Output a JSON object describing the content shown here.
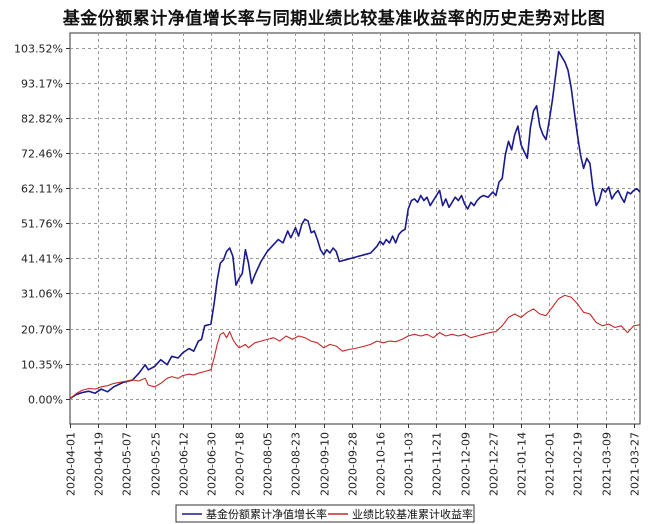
{
  "chart_data": {
    "type": "line",
    "title": "基金份额累计净值增长率与同期业绩比较基准收益率的历史走势对比图",
    "xlabel": "",
    "ylabel": "",
    "y_ticks": [
      "0.00%",
      "10.35%",
      "20.70%",
      "31.06%",
      "41.41%",
      "51.76%",
      "62.11%",
      "72.46%",
      "82.82%",
      "93.17%",
      "103.52%"
    ],
    "ylim": [
      -7.5,
      108
    ],
    "x_ticks": [
      "2020-04-01",
      "2020-04-19",
      "2020-05-07",
      "2020-05-25",
      "2020-06-12",
      "2020-06-30",
      "2020-07-18",
      "2020-08-05",
      "2020-08-23",
      "2020-09-10",
      "2020-09-28",
      "2020-10-16",
      "2020-11-03",
      "2020-11-21",
      "2020-12-09",
      "2020-12-27",
      "2021-01-14",
      "2021-02-01",
      "2021-02-19",
      "2021-03-09",
      "2021-03-27"
    ],
    "x_start": "2020-04-01",
    "x_end": "2021-03-31",
    "grid": true,
    "legend_position": "bottom",
    "series": [
      {
        "name": "基金份额累计净值增长率",
        "color": "#1a1a8c",
        "points": [
          [
            "2020-04-01",
            0.0
          ],
          [
            "2020-04-05",
            1.2
          ],
          [
            "2020-04-09",
            1.8
          ],
          [
            "2020-04-13",
            2.2
          ],
          [
            "2020-04-17",
            1.6
          ],
          [
            "2020-04-21",
            2.8
          ],
          [
            "2020-04-25",
            2.0
          ],
          [
            "2020-04-29",
            3.5
          ],
          [
            "2020-05-05",
            4.8
          ],
          [
            "2020-05-11",
            5.5
          ],
          [
            "2020-05-15",
            7.5
          ],
          [
            "2020-05-19",
            10.0
          ],
          [
            "2020-05-21",
            8.5
          ],
          [
            "2020-05-25",
            9.5
          ],
          [
            "2020-05-29",
            11.5
          ],
          [
            "2020-06-02",
            10.0
          ],
          [
            "2020-06-05",
            12.5
          ],
          [
            "2020-06-09",
            12.0
          ],
          [
            "2020-06-12",
            13.5
          ],
          [
            "2020-06-16",
            14.8
          ],
          [
            "2020-06-19",
            14.0
          ],
          [
            "2020-06-22",
            17.0
          ],
          [
            "2020-06-24",
            17.5
          ],
          [
            "2020-06-26",
            21.5
          ],
          [
            "2020-06-30",
            22.0
          ],
          [
            "2020-07-02",
            28.0
          ],
          [
            "2020-07-04",
            35.0
          ],
          [
            "2020-07-06",
            40.0
          ],
          [
            "2020-07-08",
            41.0
          ],
          [
            "2020-07-10",
            43.5
          ],
          [
            "2020-07-12",
            44.5
          ],
          [
            "2020-07-14",
            42.0
          ],
          [
            "2020-07-16",
            33.5
          ],
          [
            "2020-07-18",
            35.5
          ],
          [
            "2020-07-20",
            37.0
          ],
          [
            "2020-07-22",
            44.0
          ],
          [
            "2020-07-24",
            40.0
          ],
          [
            "2020-07-26",
            34.0
          ],
          [
            "2020-07-28",
            36.5
          ],
          [
            "2020-08-01",
            40.5
          ],
          [
            "2020-08-05",
            43.5
          ],
          [
            "2020-08-09",
            45.5
          ],
          [
            "2020-08-12",
            47.0
          ],
          [
            "2020-08-15",
            46.0
          ],
          [
            "2020-08-18",
            49.5
          ],
          [
            "2020-08-20",
            47.5
          ],
          [
            "2020-08-23",
            50.5
          ],
          [
            "2020-08-25",
            48.0
          ],
          [
            "2020-08-27",
            51.5
          ],
          [
            "2020-08-29",
            53.0
          ],
          [
            "2020-08-31",
            52.5
          ],
          [
            "2020-09-02",
            49.0
          ],
          [
            "2020-09-04",
            49.5
          ],
          [
            "2020-09-06",
            47.0
          ],
          [
            "2020-09-08",
            44.0
          ],
          [
            "2020-09-10",
            42.5
          ],
          [
            "2020-09-12",
            44.0
          ],
          [
            "2020-09-14",
            43.0
          ],
          [
            "2020-09-16",
            44.5
          ],
          [
            "2020-09-18",
            43.5
          ],
          [
            "2020-09-20",
            40.5
          ],
          [
            "2020-09-24",
            41.0
          ],
          [
            "2020-09-28",
            41.5
          ],
          [
            "2020-10-02",
            42.0
          ],
          [
            "2020-10-06",
            42.5
          ],
          [
            "2020-10-10",
            43.0
          ],
          [
            "2020-10-14",
            45.0
          ],
          [
            "2020-10-16",
            46.5
          ],
          [
            "2020-10-18",
            45.5
          ],
          [
            "2020-10-20",
            47.0
          ],
          [
            "2020-10-22",
            46.0
          ],
          [
            "2020-10-24",
            48.0
          ],
          [
            "2020-10-26",
            46.0
          ],
          [
            "2020-10-28",
            48.5
          ],
          [
            "2020-10-30",
            49.5
          ],
          [
            "2020-11-01",
            50.0
          ],
          [
            "2020-11-03",
            56.0
          ],
          [
            "2020-11-05",
            58.5
          ],
          [
            "2020-11-07",
            59.0
          ],
          [
            "2020-11-09",
            58.0
          ],
          [
            "2020-11-11",
            60.0
          ],
          [
            "2020-11-13",
            58.5
          ],
          [
            "2020-11-15",
            59.5
          ],
          [
            "2020-11-17",
            57.0
          ],
          [
            "2020-11-19",
            58.5
          ],
          [
            "2020-11-21",
            60.0
          ],
          [
            "2020-11-23",
            61.5
          ],
          [
            "2020-11-25",
            57.0
          ],
          [
            "2020-11-27",
            59.0
          ],
          [
            "2020-11-29",
            56.5
          ],
          [
            "2020-12-01",
            58.0
          ],
          [
            "2020-12-03",
            59.5
          ],
          [
            "2020-12-05",
            58.5
          ],
          [
            "2020-12-07",
            60.0
          ],
          [
            "2020-12-09",
            57.5
          ],
          [
            "2020-12-11",
            56.0
          ],
          [
            "2020-12-13",
            58.0
          ],
          [
            "2020-12-15",
            57.0
          ],
          [
            "2020-12-17",
            58.5
          ],
          [
            "2020-12-19",
            59.5
          ],
          [
            "2020-12-21",
            60.0
          ],
          [
            "2020-12-24",
            59.5
          ],
          [
            "2020-12-27",
            61.0
          ],
          [
            "2020-12-29",
            60.0
          ],
          [
            "2020-12-31",
            64.0
          ],
          [
            "2021-01-02",
            65.0
          ],
          [
            "2021-01-04",
            72.0
          ],
          [
            "2021-01-06",
            76.0
          ],
          [
            "2021-01-08",
            73.5
          ],
          [
            "2021-01-10",
            78.0
          ],
          [
            "2021-01-12",
            80.5
          ],
          [
            "2021-01-14",
            75.0
          ],
          [
            "2021-01-16",
            73.0
          ],
          [
            "2021-01-18",
            71.0
          ],
          [
            "2021-01-20",
            80.0
          ],
          [
            "2021-01-22",
            85.0
          ],
          [
            "2021-01-24",
            86.5
          ],
          [
            "2021-01-26",
            80.5
          ],
          [
            "2021-01-28",
            78.0
          ],
          [
            "2021-01-30",
            76.5
          ],
          [
            "2021-02-01",
            82.0
          ],
          [
            "2021-02-03",
            88.0
          ],
          [
            "2021-02-05",
            95.0
          ],
          [
            "2021-02-07",
            102.5
          ],
          [
            "2021-02-09",
            101.0
          ],
          [
            "2021-02-11",
            99.5
          ],
          [
            "2021-02-13",
            97.0
          ],
          [
            "2021-02-15",
            92.0
          ],
          [
            "2021-02-17",
            85.0
          ],
          [
            "2021-02-19",
            78.0
          ],
          [
            "2021-02-21",
            72.0
          ],
          [
            "2021-02-23",
            68.0
          ],
          [
            "2021-02-25",
            71.0
          ],
          [
            "2021-02-27",
            69.5
          ],
          [
            "2021-03-01",
            62.0
          ],
          [
            "2021-03-03",
            57.0
          ],
          [
            "2021-03-05",
            58.5
          ],
          [
            "2021-03-07",
            62.0
          ],
          [
            "2021-03-09",
            61.0
          ],
          [
            "2021-03-11",
            62.5
          ],
          [
            "2021-03-13",
            59.0
          ],
          [
            "2021-03-15",
            60.5
          ],
          [
            "2021-03-17",
            61.5
          ],
          [
            "2021-03-19",
            59.5
          ],
          [
            "2021-03-21",
            58.0
          ],
          [
            "2021-03-23",
            61.0
          ],
          [
            "2021-03-25",
            60.5
          ],
          [
            "2021-03-27",
            61.5
          ],
          [
            "2021-03-29",
            62.0
          ],
          [
            "2021-03-31",
            61.0
          ]
        ]
      },
      {
        "name": "业绩比较基准累计收益率",
        "color": "#c62828",
        "points": [
          [
            "2020-04-01",
            0.0
          ],
          [
            "2020-04-05",
            1.5
          ],
          [
            "2020-04-09",
            2.5
          ],
          [
            "2020-04-13",
            3.0
          ],
          [
            "2020-04-17",
            2.8
          ],
          [
            "2020-04-21",
            3.5
          ],
          [
            "2020-04-25",
            3.8
          ],
          [
            "2020-04-29",
            4.5
          ],
          [
            "2020-05-05",
            5.0
          ],
          [
            "2020-05-11",
            5.5
          ],
          [
            "2020-05-15",
            5.2
          ],
          [
            "2020-05-19",
            6.0
          ],
          [
            "2020-05-21",
            4.0
          ],
          [
            "2020-05-25",
            3.5
          ],
          [
            "2020-05-29",
            4.5
          ],
          [
            "2020-06-02",
            6.0
          ],
          [
            "2020-06-05",
            6.5
          ],
          [
            "2020-06-09",
            6.0
          ],
          [
            "2020-06-12",
            6.8
          ],
          [
            "2020-06-16",
            7.2
          ],
          [
            "2020-06-19",
            7.0
          ],
          [
            "2020-06-22",
            7.5
          ],
          [
            "2020-06-26",
            8.0
          ],
          [
            "2020-06-30",
            8.5
          ],
          [
            "2020-07-02",
            12.0
          ],
          [
            "2020-07-04",
            16.0
          ],
          [
            "2020-07-06",
            19.0
          ],
          [
            "2020-07-08",
            19.5
          ],
          [
            "2020-07-10",
            18.0
          ],
          [
            "2020-07-12",
            19.8
          ],
          [
            "2020-07-14",
            17.5
          ],
          [
            "2020-07-16",
            16.0
          ],
          [
            "2020-07-18",
            15.0
          ],
          [
            "2020-07-20",
            15.5
          ],
          [
            "2020-07-22",
            16.0
          ],
          [
            "2020-07-24",
            15.0
          ],
          [
            "2020-07-28",
            16.5
          ],
          [
            "2020-08-01",
            17.0
          ],
          [
            "2020-08-05",
            17.5
          ],
          [
            "2020-08-09",
            18.0
          ],
          [
            "2020-08-13",
            17.0
          ],
          [
            "2020-08-17",
            18.5
          ],
          [
            "2020-08-21",
            17.5
          ],
          [
            "2020-08-25",
            18.5
          ],
          [
            "2020-08-29",
            18.0
          ],
          [
            "2020-09-02",
            17.0
          ],
          [
            "2020-09-06",
            16.5
          ],
          [
            "2020-09-10",
            15.0
          ],
          [
            "2020-09-14",
            16.0
          ],
          [
            "2020-09-18",
            15.5
          ],
          [
            "2020-09-22",
            14.0
          ],
          [
            "2020-09-26",
            14.5
          ],
          [
            "2020-09-30",
            14.8
          ],
          [
            "2020-10-06",
            15.5
          ],
          [
            "2020-10-10",
            16.0
          ],
          [
            "2020-10-14",
            17.0
          ],
          [
            "2020-10-18",
            16.5
          ],
          [
            "2020-10-22",
            17.0
          ],
          [
            "2020-10-26",
            16.8
          ],
          [
            "2020-10-30",
            17.5
          ],
          [
            "2020-11-03",
            18.5
          ],
          [
            "2020-11-07",
            19.0
          ],
          [
            "2020-11-11",
            18.5
          ],
          [
            "2020-11-15",
            19.0
          ],
          [
            "2020-11-19",
            18.0
          ],
          [
            "2020-11-23",
            19.5
          ],
          [
            "2020-11-27",
            18.5
          ],
          [
            "2020-12-01",
            19.0
          ],
          [
            "2020-12-05",
            18.5
          ],
          [
            "2020-12-09",
            19.0
          ],
          [
            "2020-12-13",
            18.0
          ],
          [
            "2020-12-17",
            18.5
          ],
          [
            "2020-12-21",
            19.0
          ],
          [
            "2020-12-25",
            19.5
          ],
          [
            "2020-12-29",
            19.8
          ],
          [
            "2021-01-02",
            21.5
          ],
          [
            "2021-01-06",
            24.0
          ],
          [
            "2021-01-10",
            25.0
          ],
          [
            "2021-01-14",
            24.0
          ],
          [
            "2021-01-18",
            25.5
          ],
          [
            "2021-01-22",
            26.5
          ],
          [
            "2021-01-26",
            25.0
          ],
          [
            "2021-01-30",
            24.5
          ],
          [
            "2021-02-03",
            27.0
          ],
          [
            "2021-02-07",
            29.5
          ],
          [
            "2021-02-11",
            30.5
          ],
          [
            "2021-02-15",
            30.0
          ],
          [
            "2021-02-19",
            28.0
          ],
          [
            "2021-02-23",
            25.5
          ],
          [
            "2021-02-27",
            25.0
          ],
          [
            "2021-03-03",
            22.5
          ],
          [
            "2021-03-07",
            21.5
          ],
          [
            "2021-03-11",
            22.0
          ],
          [
            "2021-03-15",
            21.0
          ],
          [
            "2021-03-19",
            21.5
          ],
          [
            "2021-03-23",
            19.5
          ],
          [
            "2021-03-27",
            21.5
          ],
          [
            "2021-03-31",
            21.8
          ]
        ]
      }
    ]
  }
}
